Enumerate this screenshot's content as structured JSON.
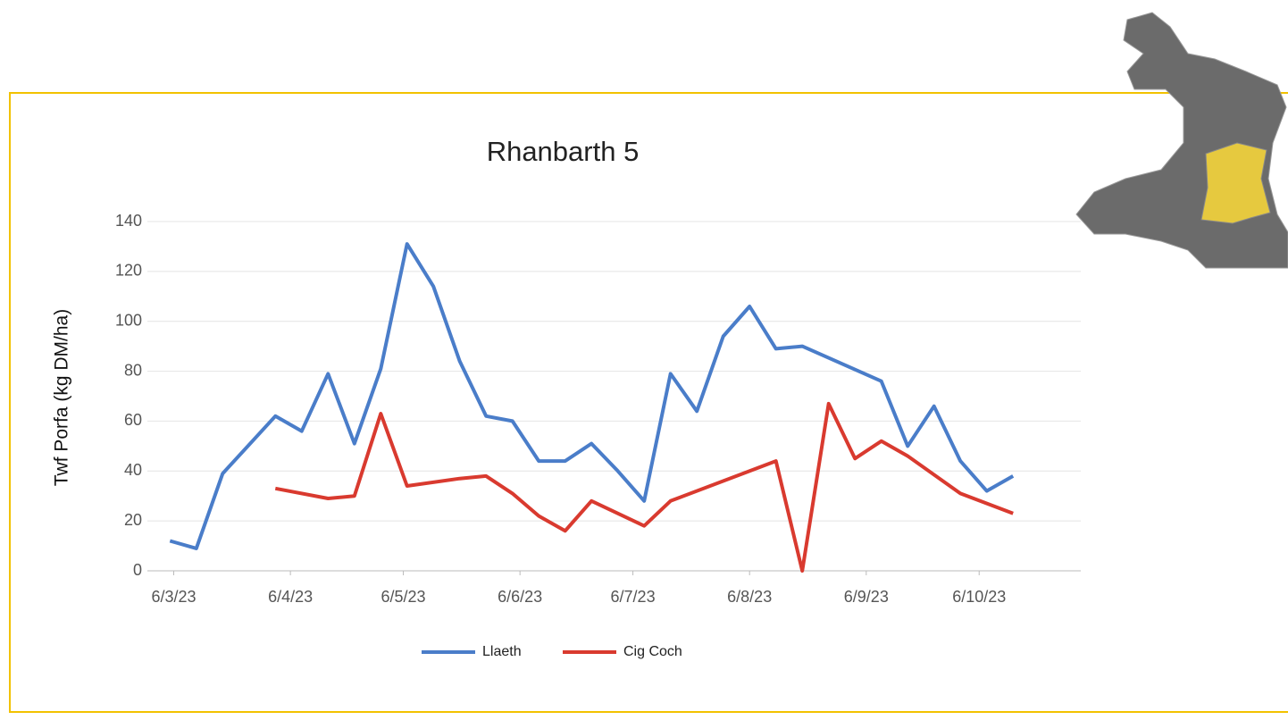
{
  "chart_data": {
    "type": "line",
    "title": "Rhanbarth 5",
    "y_label": "Twf Porfa (kg DM/ha)",
    "ylim": [
      0,
      140
    ],
    "yticks": [
      0,
      20,
      40,
      60,
      80,
      100,
      120,
      140
    ],
    "xlim": [
      "2023-02-27",
      "2023-11-02"
    ],
    "xticks": [
      {
        "value": "2023-03-06",
        "label": "6/3/23"
      },
      {
        "value": "2023-04-06",
        "label": "6/4/23"
      },
      {
        "value": "2023-05-06",
        "label": "6/5/23"
      },
      {
        "value": "2023-06-06",
        "label": "6/6/23"
      },
      {
        "value": "2023-07-06",
        "label": "6/7/23"
      },
      {
        "value": "2023-08-06",
        "label": "6/8/23"
      },
      {
        "value": "2023-09-06",
        "label": "6/9/23"
      },
      {
        "value": "2023-10-06",
        "label": "6/10/23"
      }
    ],
    "grid": true,
    "legend": "bottom",
    "series": [
      {
        "name": "Llaeth",
        "color": "#4a7dc9",
        "x": [
          "2023-03-05",
          "2023-03-12",
          "2023-03-19",
          "2023-04-02",
          "2023-04-09",
          "2023-04-16",
          "2023-04-23",
          "2023-04-30",
          "2023-05-07",
          "2023-05-14",
          "2023-05-21",
          "2023-05-28",
          "2023-06-04",
          "2023-06-11",
          "2023-06-18",
          "2023-06-25",
          "2023-07-02",
          "2023-07-09",
          "2023-07-16",
          "2023-07-23",
          "2023-07-30",
          "2023-08-06",
          "2023-08-13",
          "2023-08-20",
          "2023-09-10",
          "2023-09-17",
          "2023-09-24",
          "2023-10-01",
          "2023-10-08",
          "2023-10-15"
        ],
        "values": [
          12,
          9,
          39,
          62,
          56,
          79,
          51,
          81,
          131,
          114,
          84,
          62,
          60,
          44,
          44,
          51,
          40,
          28,
          79,
          64,
          94,
          106,
          89,
          90,
          76,
          50,
          66,
          44,
          32,
          38
        ]
      },
      {
        "name": "Cig Coch",
        "color": "#d93a2f",
        "x": [
          "2023-04-02",
          "2023-04-16",
          "2023-04-23",
          "2023-04-30",
          "2023-05-07",
          "2023-05-21",
          "2023-05-28",
          "2023-06-04",
          "2023-06-11",
          "2023-06-18",
          "2023-06-25",
          "2023-07-09",
          "2023-07-16",
          "2023-08-13",
          "2023-08-20",
          "2023-08-27",
          "2023-09-03",
          "2023-09-10",
          "2023-09-17",
          "2023-10-01",
          "2023-10-15"
        ],
        "values": [
          33,
          29,
          30,
          63,
          34,
          37,
          38,
          31,
          22,
          16,
          28,
          18,
          28,
          44,
          0,
          67,
          45,
          52,
          46,
          31,
          23
        ]
      }
    ]
  }
}
